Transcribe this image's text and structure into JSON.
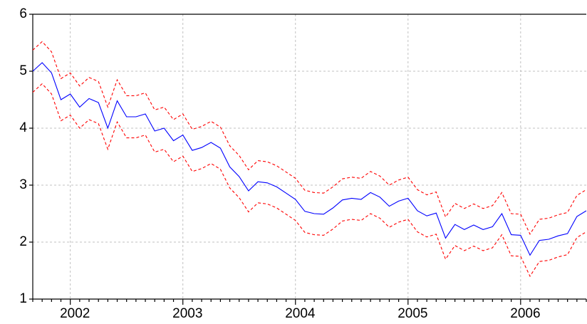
{
  "chart_data": {
    "type": "line",
    "categories": [
      null,
      null,
      null,
      null,
      "2002",
      null,
      null,
      null,
      null,
      null,
      null,
      null,
      null,
      null,
      null,
      null,
      "2003",
      null,
      null,
      null,
      null,
      null,
      null,
      null,
      null,
      null,
      null,
      null,
      "2004",
      null,
      null,
      null,
      null,
      null,
      null,
      null,
      null,
      null,
      null,
      null,
      "2005",
      null,
      null,
      null,
      null,
      null,
      null,
      null,
      null,
      null,
      null,
      null,
      "2006",
      null,
      null,
      null,
      null,
      null,
      null,
      null
    ],
    "series": [
      {
        "color": "#0000ff",
        "dashed": false,
        "values": [
          5.0,
          5.15,
          4.97,
          4.5,
          4.6,
          4.37,
          4.52,
          4.45,
          4.0,
          4.48,
          4.2,
          4.2,
          4.25,
          3.95,
          4.0,
          3.78,
          3.88,
          3.61,
          3.66,
          3.75,
          3.65,
          3.32,
          3.15,
          2.9,
          3.06,
          3.04,
          2.97,
          2.86,
          2.75,
          2.54,
          2.5,
          2.49,
          2.6,
          2.74,
          2.77,
          2.75,
          2.87,
          2.79,
          2.63,
          2.72,
          2.77,
          2.55,
          2.46,
          2.51,
          2.07,
          2.31,
          2.22,
          2.3,
          2.22,
          2.27,
          2.5,
          2.13,
          2.12,
          1.77,
          2.03,
          2.05,
          2.11,
          2.15,
          2.45,
          2.55
        ]
      },
      {
        "color": "#ff0000",
        "dashed": true,
        "values": [
          5.37,
          5.52,
          5.34,
          4.87,
          4.97,
          4.74,
          4.89,
          4.82,
          4.37,
          4.85,
          4.57,
          4.57,
          4.62,
          4.32,
          4.37,
          4.15,
          4.25,
          3.98,
          4.03,
          4.12,
          4.02,
          3.69,
          3.52,
          3.27,
          3.43,
          3.41,
          3.34,
          3.23,
          3.12,
          2.91,
          2.87,
          2.86,
          2.97,
          3.11,
          3.14,
          3.12,
          3.24,
          3.16,
          3.0,
          3.09,
          3.14,
          2.92,
          2.83,
          2.88,
          2.44,
          2.68,
          2.59,
          2.67,
          2.59,
          2.64,
          2.87,
          2.5,
          2.49,
          2.14,
          2.4,
          2.42,
          2.48,
          2.52,
          2.82,
          2.92
        ]
      },
      {
        "color": "#ff0000",
        "dashed": true,
        "values": [
          4.63,
          4.78,
          4.6,
          4.13,
          4.23,
          4.0,
          4.15,
          4.08,
          3.63,
          4.11,
          3.83,
          3.83,
          3.88,
          3.58,
          3.63,
          3.41,
          3.51,
          3.24,
          3.29,
          3.38,
          3.28,
          2.95,
          2.78,
          2.53,
          2.69,
          2.67,
          2.6,
          2.49,
          2.38,
          2.17,
          2.13,
          2.12,
          2.23,
          2.37,
          2.4,
          2.38,
          2.5,
          2.42,
          2.26,
          2.35,
          2.4,
          2.18,
          2.09,
          2.14,
          1.7,
          1.94,
          1.85,
          1.93,
          1.85,
          1.9,
          2.13,
          1.76,
          1.75,
          1.4,
          1.66,
          1.68,
          1.74,
          1.78,
          2.08,
          2.18
        ]
      }
    ],
    "ylim": [
      1,
      6
    ],
    "yticks": [
      1,
      2,
      3,
      4,
      5,
      6
    ],
    "grid": true
  }
}
